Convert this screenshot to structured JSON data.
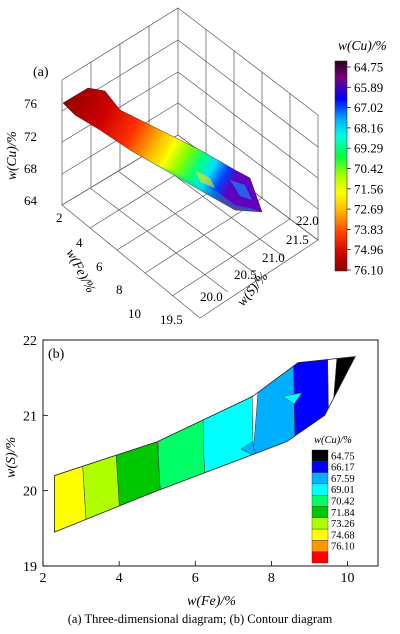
{
  "caption": "(a) Three-dimensional diagram; (b) Contour diagram",
  "colors": {
    "top_colorbar": [
      "#2b001a",
      "#7a0080",
      "#0000ff",
      "#00b0ff",
      "#00ffe0",
      "#00ff40",
      "#b0ff00",
      "#ffff00",
      "#ffb000",
      "#ff4000",
      "#cc0000",
      "#8b0000"
    ],
    "bottom_colorbar": [
      "#000000",
      "#0000ff",
      "#00b0ff",
      "#00ffff",
      "#00ff66",
      "#00c800",
      "#b0ff00",
      "#ffff00",
      "#ff9900",
      "#ff0000",
      "#808080"
    ]
  },
  "chart_data": [
    {
      "type": "surface-3d",
      "panel_label": "(a)",
      "xlabel": "w(Fe)/%",
      "ylabel": "w(S)/%",
      "zlabel": "w(Cu)/%",
      "x_ticks": [
        "2",
        "4",
        "6",
        "8",
        "10"
      ],
      "y_ticks": [
        "19.5",
        "20.0",
        "20.5",
        "21.0",
        "21.5",
        "22.0"
      ],
      "z_ticks": [
        "64",
        "68",
        "72",
        "76"
      ],
      "xlim": [
        2,
        10
      ],
      "ylim": [
        19.5,
        22.0
      ],
      "zlim": [
        64,
        76
      ],
      "colorbar_title": "w(Cu)/%",
      "colorbar_levels": [
        "64.75",
        "65.89",
        "67.02",
        "68.16",
        "69.29",
        "70.42",
        "71.56",
        "72.69",
        "73.83",
        "74.96",
        "76.10"
      ],
      "surface": [
        {
          "x": 2.4,
          "y": 20.0,
          "z": 75.8
        },
        {
          "x": 4.0,
          "y": 20.3,
          "z": 74.5
        },
        {
          "x": 5.5,
          "y": 20.6,
          "z": 72.0
        },
        {
          "x": 7.0,
          "y": 21.0,
          "z": 69.5
        },
        {
          "x": 8.5,
          "y": 21.4,
          "z": 67.5
        },
        {
          "x": 10.2,
          "y": 21.8,
          "z": 65.0
        }
      ]
    },
    {
      "type": "contour",
      "panel_label": "(b)",
      "xlabel": "w(Fe)/%",
      "ylabel": "w(S)/%",
      "x_ticks": [
        "2",
        "4",
        "6",
        "8",
        "10"
      ],
      "y_ticks": [
        "19",
        "20",
        "21",
        "22"
      ],
      "xlim": [
        2,
        10.8
      ],
      "ylim": [
        19,
        22
      ],
      "legend_title": "w(Cu)/%",
      "legend_levels": [
        "64.75",
        "66.17",
        "67.59",
        "69.01",
        "70.42",
        "71.84",
        "73.26",
        "74.68",
        "76.10"
      ],
      "boundary": [
        [
          2.3,
          19.45
        ],
        [
          2.3,
          20.2
        ],
        [
          5.0,
          20.65
        ],
        [
          7.5,
          21.25
        ],
        [
          8.7,
          21.7
        ],
        [
          10.2,
          21.78
        ],
        [
          9.4,
          21.0
        ],
        [
          8.4,
          20.65
        ],
        [
          5.0,
          20.0
        ],
        [
          2.3,
          19.45
        ]
      ],
      "bands": [
        {
          "x0": 2.3,
          "x1": 3.1,
          "value": "74.68"
        },
        {
          "x0": 3.1,
          "x1": 4.0,
          "value": "73.26"
        },
        {
          "x0": 4.0,
          "x1": 5.1,
          "value": "71.84"
        },
        {
          "x0": 5.1,
          "x1": 6.3,
          "value": "70.42"
        },
        {
          "x0": 6.3,
          "x1": 7.6,
          "value": "69.01"
        },
        {
          "x0": 7.6,
          "x1": 8.7,
          "value": "67.59"
        },
        {
          "x0": 8.7,
          "x1": 9.6,
          "value": "66.17"
        },
        {
          "x0": 9.6,
          "x1": 10.2,
          "value": "64.75"
        }
      ]
    }
  ]
}
